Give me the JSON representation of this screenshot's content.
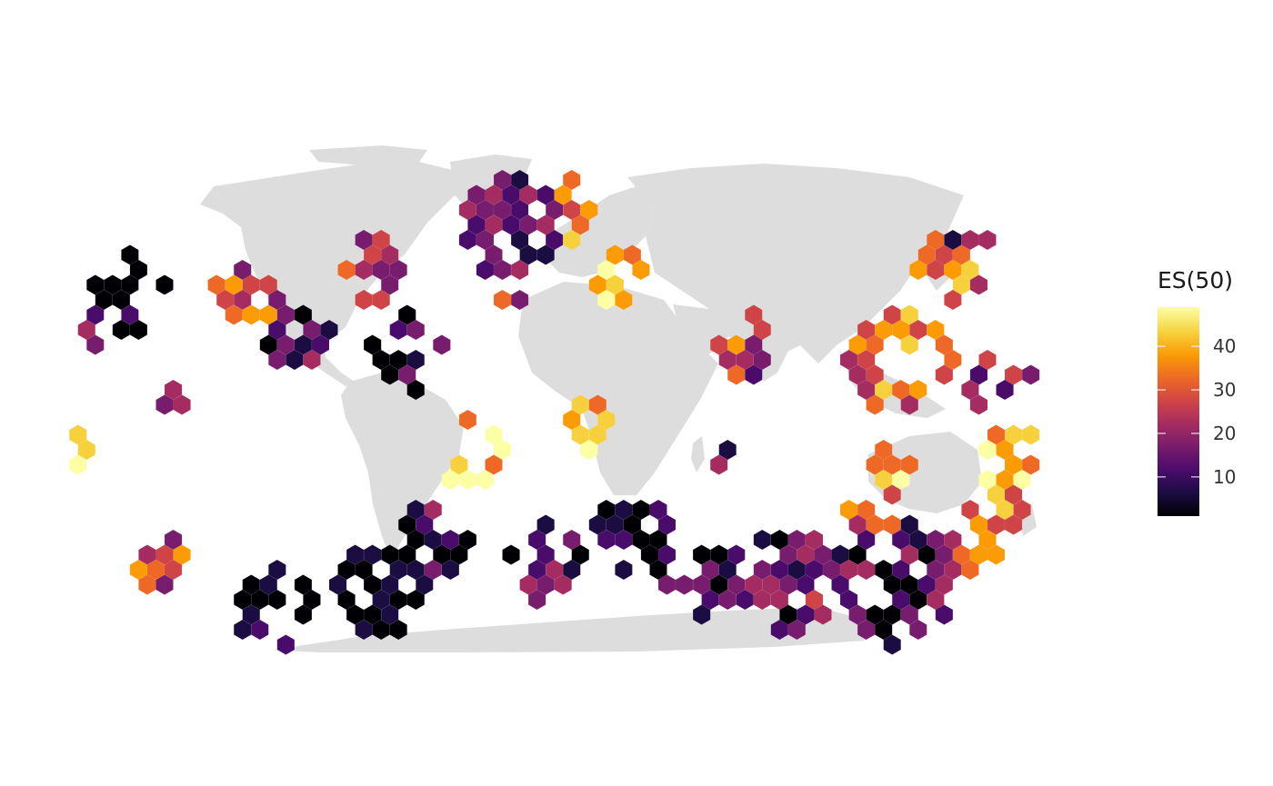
{
  "map": {
    "projection": "Robinson-like world map",
    "land_color": "#dddddd",
    "ocean_color": "#ffffff",
    "cell_shape": "hexagon"
  },
  "legend": {
    "title": "ES(50)",
    "placement": "right",
    "range": [
      1,
      49
    ],
    "ticks": [
      {
        "value": 10,
        "label": "10"
      },
      {
        "value": 20,
        "label": "20"
      },
      {
        "value": 30,
        "label": "30"
      },
      {
        "value": 40,
        "label": "40"
      }
    ],
    "colorscale": [
      "#000004",
      "#1b0c41",
      "#4a0c6b",
      "#781c6d",
      "#a52c60",
      "#cf4446",
      "#ed6925",
      "#fb9b06",
      "#f7d13d",
      "#fcffa4"
    ]
  }
}
